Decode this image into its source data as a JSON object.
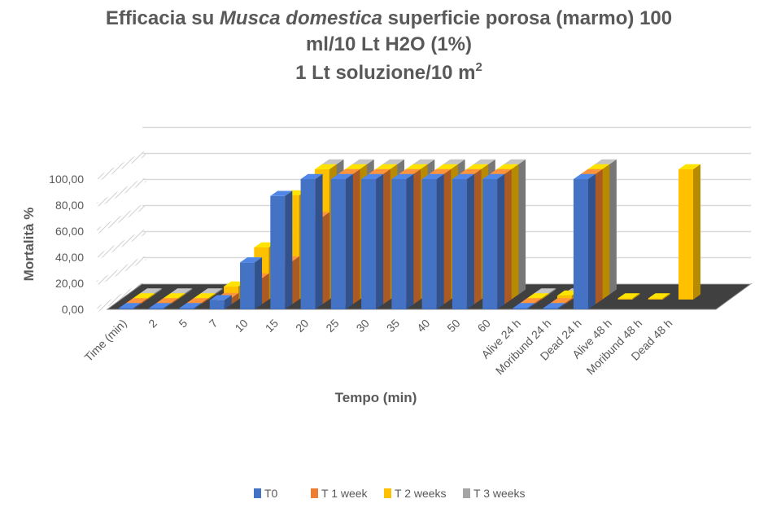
{
  "chart_data": {
    "type": "bar",
    "subtype": "3d-clustered-column",
    "title_prefix": "Efficacia su ",
    "title_species": "Musca domestica",
    "title_rest": " superficie porosa (marmo) 100",
    "title_line2": "ml/10 Lt H2O (1%)",
    "title_line3_base": "1 Lt soluzione/10 m",
    "title_line3_sup": "2",
    "xlabel": "Tempo (min)",
    "ylabel": "Mortalità %",
    "ylim": [
      0,
      100
    ],
    "yticks": [
      "0,00",
      "20,00",
      "40,00",
      "60,00",
      "80,00",
      "100,00"
    ],
    "categories": [
      "Time (min)",
      "2",
      "5",
      "7",
      "10",
      "15",
      "20",
      "25",
      "30",
      "35",
      "40",
      "50",
      "60",
      "Alive 24 h",
      "Moribund 24 h",
      "Dead 24 h",
      "Alive 48 h",
      "Moribund 48 h",
      "Dead 48 h"
    ],
    "series": [
      {
        "name": "T0",
        "color": "#4472C4",
        "values": [
          0,
          0,
          0,
          7,
          36,
          87,
          100,
          100,
          100,
          100,
          100,
          100,
          100,
          0,
          0,
          100,
          null,
          null,
          null
        ]
      },
      {
        "name": "T 1 week",
        "color": "#ED7D31",
        "values": [
          0,
          0,
          0,
          5,
          20,
          33,
          67,
          100,
          100,
          100,
          100,
          100,
          100,
          0,
          0,
          100,
          null,
          null,
          null
        ]
      },
      {
        "name": "T 2 weeks",
        "color": "#FFC000",
        "values": [
          0,
          0,
          0,
          10,
          40,
          80,
          100,
          100,
          100,
          100,
          100,
          100,
          100,
          0,
          3,
          100,
          0,
          0,
          100
        ]
      },
      {
        "name": "T 3 weeks",
        "color": "#A5A5A5",
        "values": [
          0,
          0,
          0,
          0,
          0,
          0,
          100,
          100,
          100,
          100,
          100,
          100,
          100,
          0,
          0,
          100,
          null,
          null,
          null
        ]
      }
    ],
    "legend_position": "bottom",
    "grid": true
  }
}
